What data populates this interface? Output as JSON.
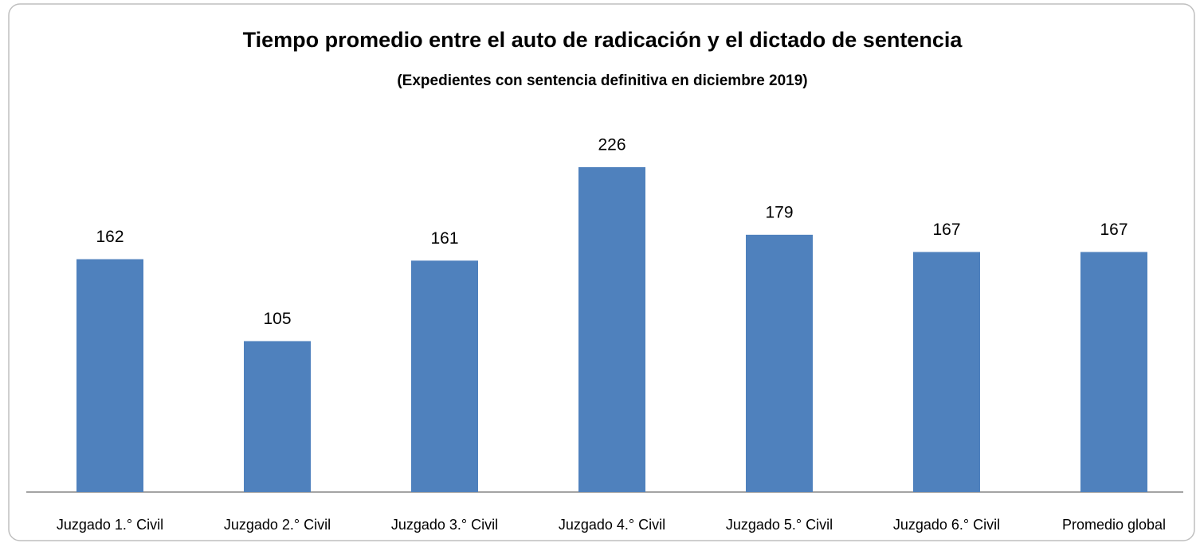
{
  "chart_data": {
    "type": "bar",
    "title": "Tiempo promedio entre el auto de radicación y el dictado de sentencia",
    "subtitle": "(Expedientes con sentencia definitiva en diciembre 2019)",
    "categories": [
      "Juzgado 1.° Civil",
      "Juzgado 2.° Civil",
      "Juzgado 3.° Civil",
      "Juzgado 4.° Civil",
      "Juzgado 5.° Civil",
      "Juzgado 6.° Civil",
      "Promedio global"
    ],
    "values": [
      162,
      105,
      161,
      226,
      179,
      167,
      167
    ],
    "color": "#4f81bd"
  }
}
